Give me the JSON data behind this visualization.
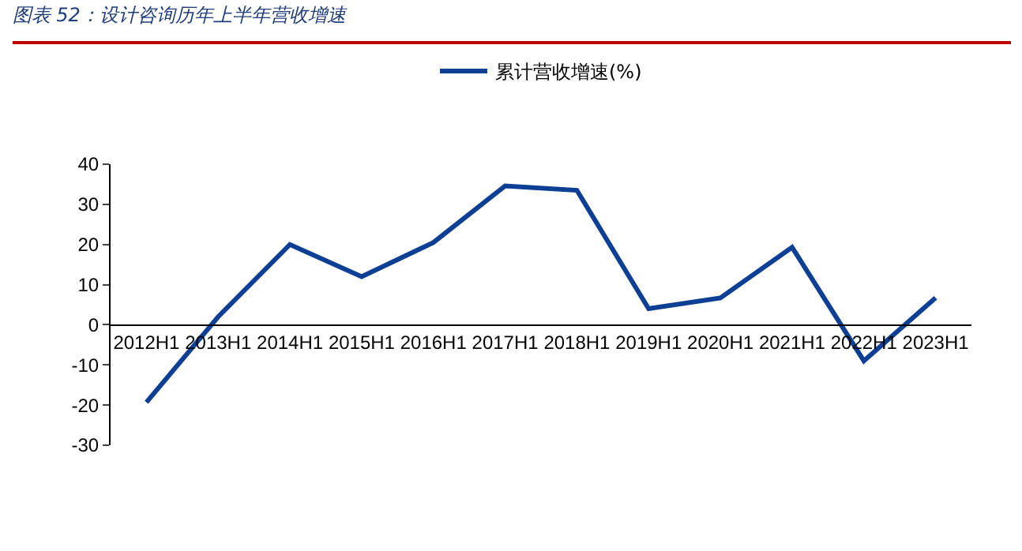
{
  "chart_data": {
    "type": "line",
    "title": "图表 52：设计咨询历年上半年营收增速",
    "categories": [
      "2012H1",
      "2013H1",
      "2014H1",
      "2015H1",
      "2016H1",
      "2017H1",
      "2018H1",
      "2019H1",
      "2020H1",
      "2021H1",
      "2022H1",
      "2023H1"
    ],
    "series": [
      {
        "name": "累计营收增速(%)",
        "color": "#0d3f94",
        "values": [
          -19.3,
          2,
          20,
          12,
          20.5,
          34.6,
          33.5,
          4,
          6.7,
          19.3,
          -9,
          6.7
        ]
      }
    ],
    "ylim": [
      -30,
      40
    ],
    "yticks": [
      -30,
      -20,
      -10,
      0,
      10,
      20,
      30,
      40
    ],
    "grid": false,
    "legend": "top",
    "marker": "none",
    "line_style": "solid"
  }
}
